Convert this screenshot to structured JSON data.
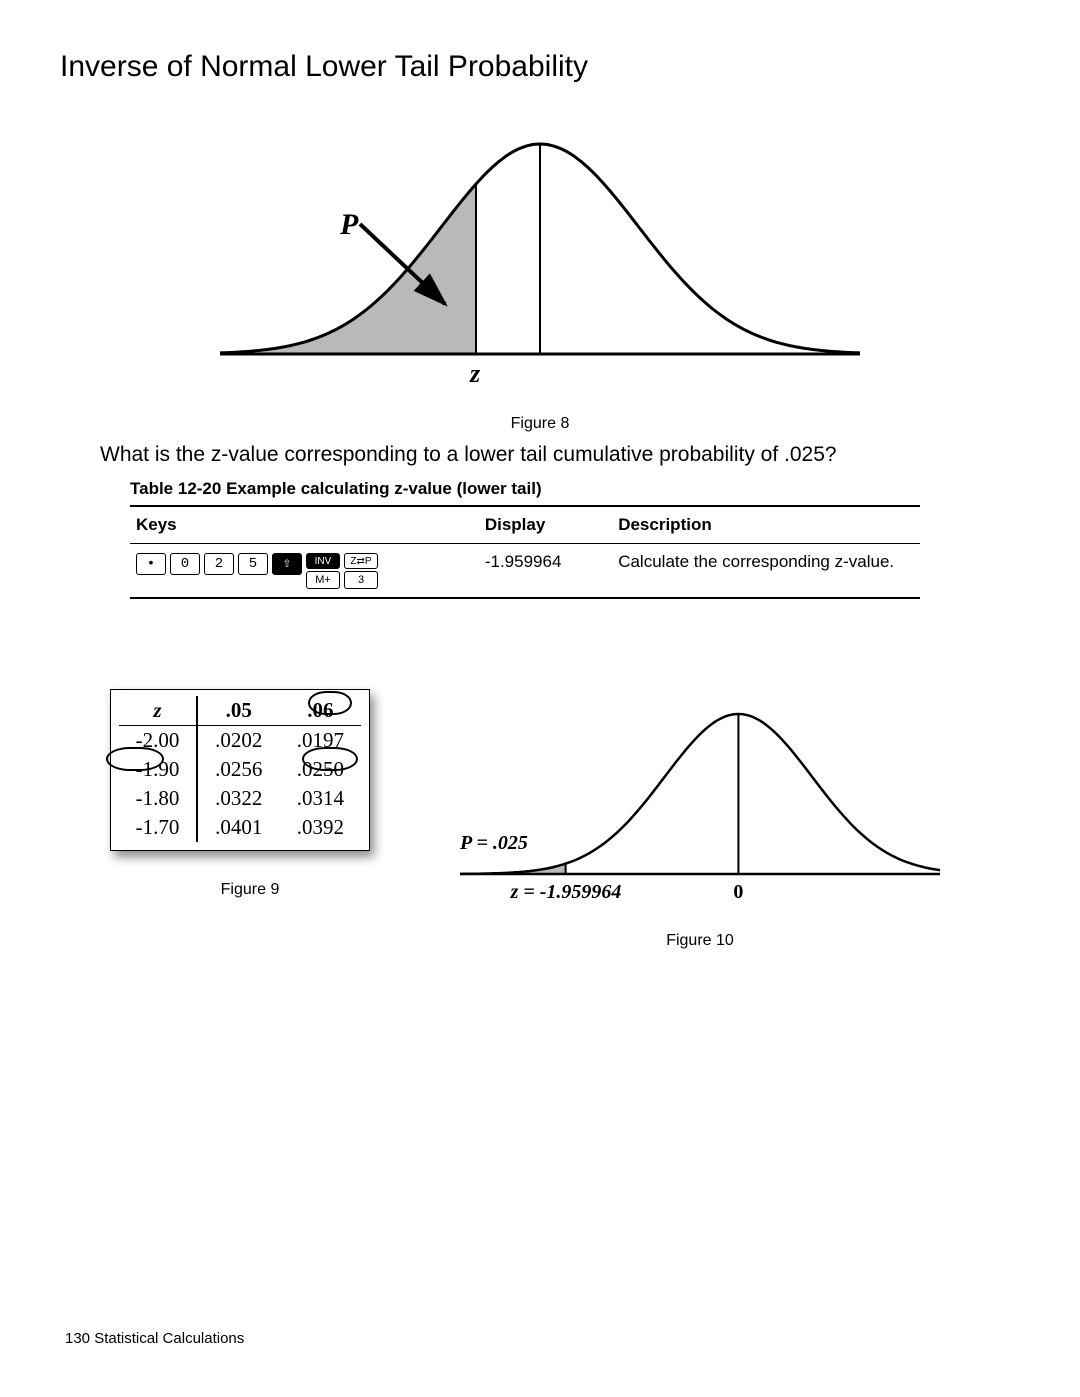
{
  "title": "Inverse of Normal Lower Tail Probability",
  "figure8": {
    "caption": "Figure 8",
    "p_label": "P",
    "z_label": "z",
    "curve_color": "#000000",
    "line_width": 3,
    "fill_color": "#b9b9b9",
    "background": "#ffffff",
    "z_cut_ratio": 0.4,
    "center_ratio": 0.5
  },
  "question": "What is the z-value corresponding to a lower tail cumulative probability of .025?",
  "table": {
    "caption": "Table 12-20  Example calculating z-value (lower tail)",
    "headers": {
      "keys": "Keys",
      "display": "Display",
      "description": "Description"
    },
    "row1": {
      "display": "-1.959964",
      "description": "Calculate the corresponding z-value.",
      "keys": {
        "dot": "•",
        "d0": "0",
        "d2": "2",
        "d5": "5",
        "shift": "⇧",
        "inv": "INV",
        "mplus": "M+",
        "zp": "Z⇄P",
        "three": "3"
      }
    }
  },
  "ztable": {
    "caption": "Figure 9",
    "header": {
      "z": "z",
      "c05": ".05",
      "c06": ".06"
    },
    "rows": [
      {
        "z": "-2.00",
        "c05": ".0202",
        "c06": ".0197"
      },
      {
        "z": "-1.90",
        "c05": ".0256",
        "c06": ".0250"
      },
      {
        "z": "-1.80",
        "c05": ".0322",
        "c06": ".0314"
      },
      {
        "z": "-1.70",
        "c05": ".0401",
        "c06": ".0392"
      }
    ]
  },
  "figure10": {
    "caption": "Figure 10",
    "p_label": "P = .025",
    "z_label": "z = -1.959964",
    "zero_label": "0",
    "curve_color": "#000000",
    "line_width": 2.5,
    "fill_color": "#b9b9b9",
    "z_cut_ratio": 0.22,
    "center_ratio": 0.58
  },
  "footer": {
    "page": "130",
    "section": "Statistical Calculations"
  }
}
